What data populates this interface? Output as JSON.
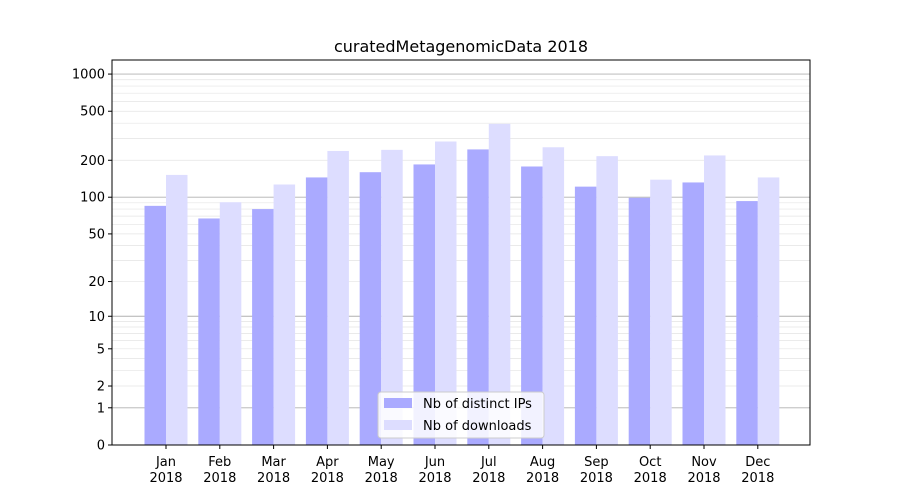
{
  "chart_data": {
    "type": "bar",
    "title": "curatedMetagenomicData 2018",
    "xlabel": "",
    "ylabel": "",
    "y_scale": "symlog",
    "ylim": [
      0,
      1300
    ],
    "y_ticks": [
      0,
      1,
      2,
      5,
      10,
      20,
      50,
      100,
      200,
      500,
      1000
    ],
    "y_tick_labels": [
      "0",
      "1",
      "2",
      "5",
      "10",
      "20",
      "50",
      "100",
      "200",
      "500",
      "1000"
    ],
    "grid": true,
    "legend_position": "bottom-center",
    "categories": [
      {
        "month": "Jan",
        "year": "2018"
      },
      {
        "month": "Feb",
        "year": "2018"
      },
      {
        "month": "Mar",
        "year": "2018"
      },
      {
        "month": "Apr",
        "year": "2018"
      },
      {
        "month": "May",
        "year": "2018"
      },
      {
        "month": "Jun",
        "year": "2018"
      },
      {
        "month": "Jul",
        "year": "2018"
      },
      {
        "month": "Aug",
        "year": "2018"
      },
      {
        "month": "Sep",
        "year": "2018"
      },
      {
        "month": "Oct",
        "year": "2018"
      },
      {
        "month": "Nov",
        "year": "2018"
      },
      {
        "month": "Dec",
        "year": "2018"
      }
    ],
    "series": [
      {
        "name": "Nb of distinct IPs",
        "color": "#aaaaff",
        "values": [
          85,
          67,
          80,
          145,
          160,
          185,
          245,
          178,
          122,
          99,
          132,
          93
        ]
      },
      {
        "name": "Nb of downloads",
        "color": "#ddddff",
        "values": [
          152,
          91,
          127,
          238,
          243,
          284,
          395,
          255,
          216,
          139,
          219,
          145
        ]
      }
    ]
  }
}
